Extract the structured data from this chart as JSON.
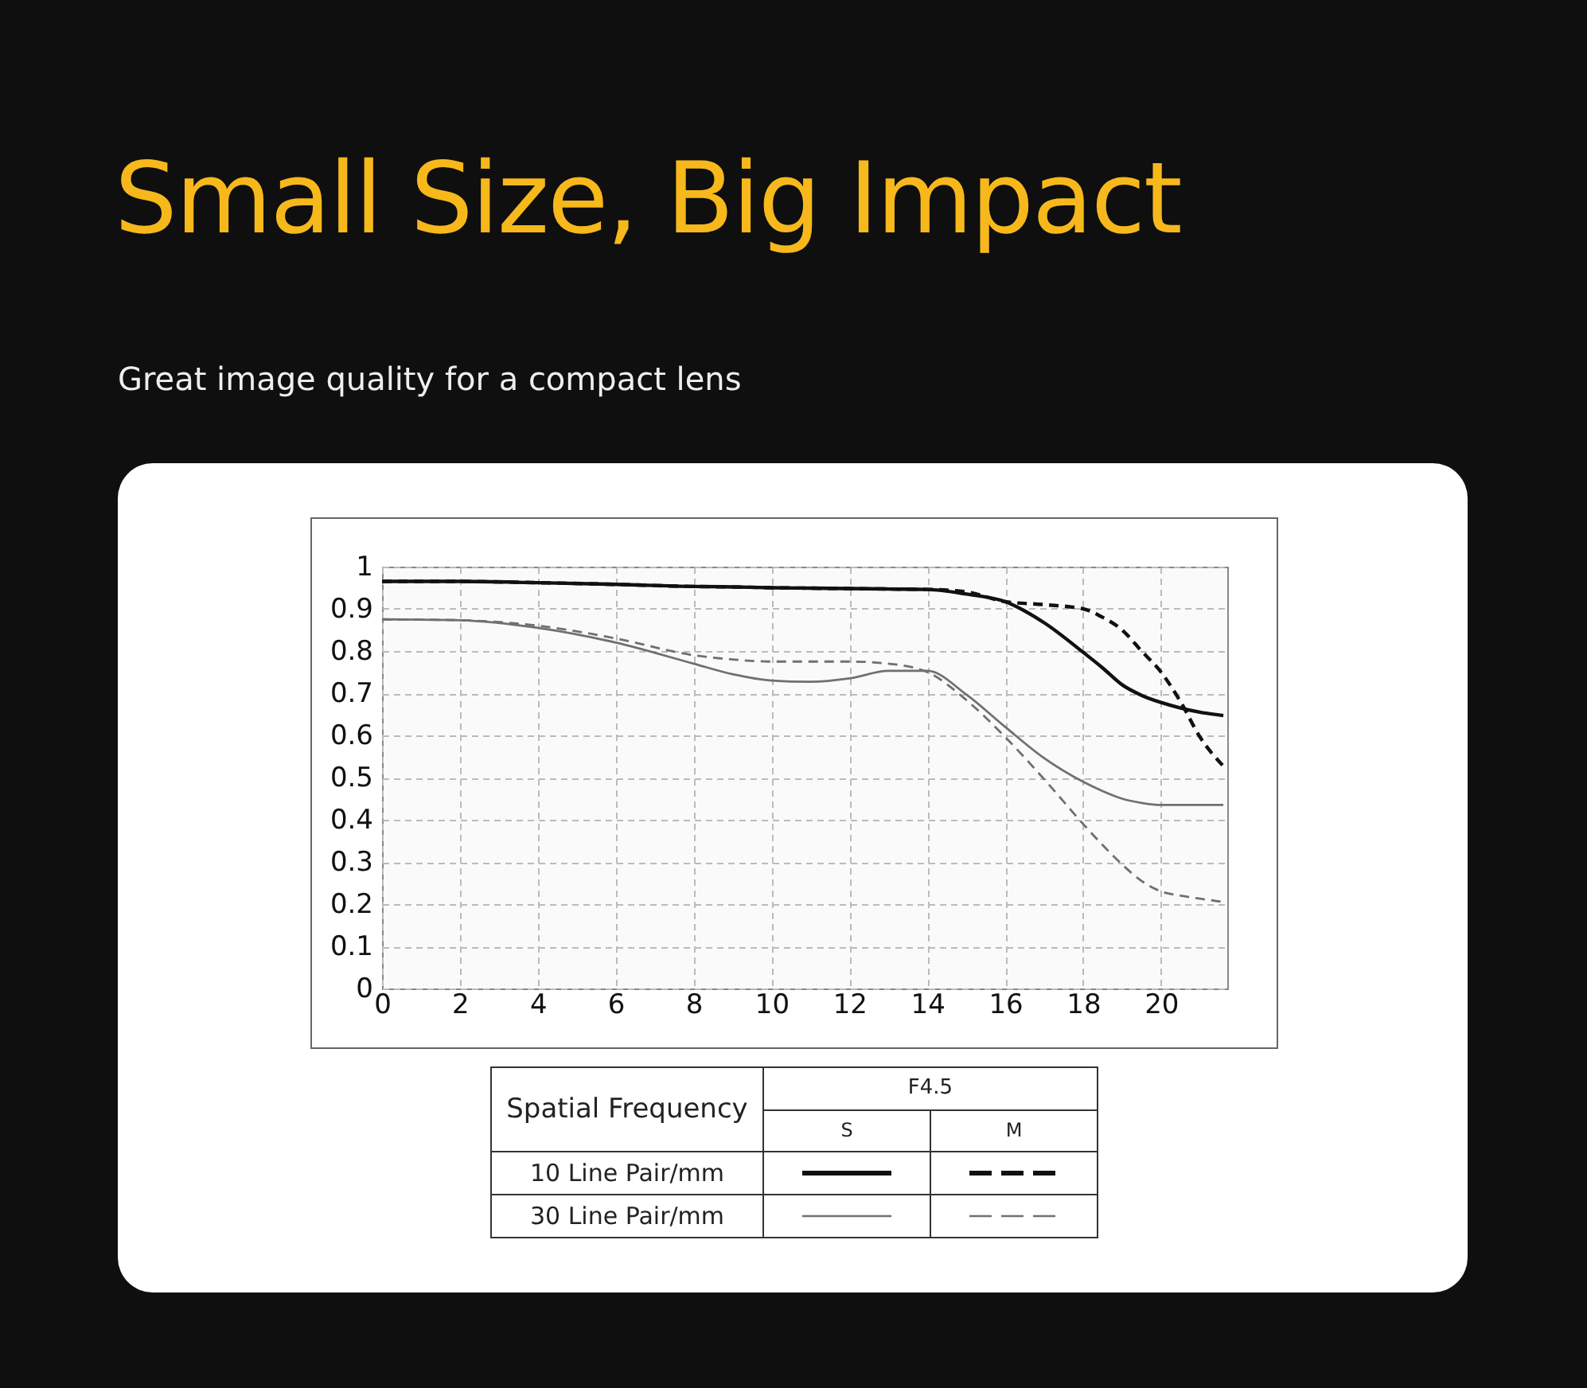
{
  "chart_data": {
    "type": "line",
    "title": "Small Size, Big Impact",
    "subtitle": "Great image quality for a compact lens",
    "annotations": [
      "Spatial Frequency",
      "F4.5",
      "S",
      "M",
      "10 Line Pair/mm",
      "30 Line Pair/mm"
    ],
    "x": [
      0,
      2,
      4,
      6,
      8,
      9,
      10,
      11,
      12,
      13,
      14,
      15,
      16,
      17,
      18,
      18.5,
      19,
      19.5,
      20,
      20.5,
      21,
      21.6
    ],
    "series": [
      {
        "color": "#111111",
        "line_style": "solid",
        "values": [
          0.965,
          0.965,
          0.962,
          0.958,
          0.953,
          0.952,
          0.95,
          0.949,
          0.948,
          0.947,
          0.946,
          0.935,
          0.917,
          0.867,
          0.797,
          0.76,
          0.72,
          0.695,
          0.678,
          0.665,
          0.655,
          0.647
        ]
      },
      {
        "color": "#111111",
        "line_style": "dashed",
        "values": [
          0.965,
          0.965,
          0.962,
          0.958,
          0.953,
          0.952,
          0.95,
          0.949,
          0.948,
          0.947,
          0.946,
          0.94,
          0.917,
          0.91,
          0.9,
          0.88,
          0.85,
          0.8,
          0.75,
          0.68,
          0.596,
          0.527
        ]
      },
      {
        "color": "#707070",
        "line_style": "solid",
        "values": [
          0.875,
          0.873,
          0.855,
          0.82,
          0.77,
          0.745,
          0.73,
          0.727,
          0.735,
          0.753,
          0.753,
          0.697,
          0.62,
          0.546,
          0.49,
          0.468,
          0.45,
          0.44,
          0.435,
          0.435,
          0.435,
          0.435
        ]
      },
      {
        "color": "#707070",
        "line_style": "dashed",
        "values": [
          0.875,
          0.873,
          0.86,
          0.83,
          0.79,
          0.78,
          0.775,
          0.775,
          0.775,
          0.77,
          0.75,
          0.684,
          0.596,
          0.496,
          0.39,
          0.34,
          0.294,
          0.255,
          0.23,
          0.22,
          0.213,
          0.205
        ]
      }
    ],
    "xlim": [
      0,
      21.7
    ],
    "ylim": [
      0,
      1
    ],
    "xticks": [
      0,
      2,
      4,
      6,
      8,
      10,
      12,
      14,
      16,
      18,
      20
    ],
    "yticks": [
      0,
      0.1,
      0.2,
      0.3,
      0.4,
      0.5,
      0.6,
      0.7,
      0.8,
      0.9,
      1
    ],
    "grid": true,
    "marker": "none"
  }
}
